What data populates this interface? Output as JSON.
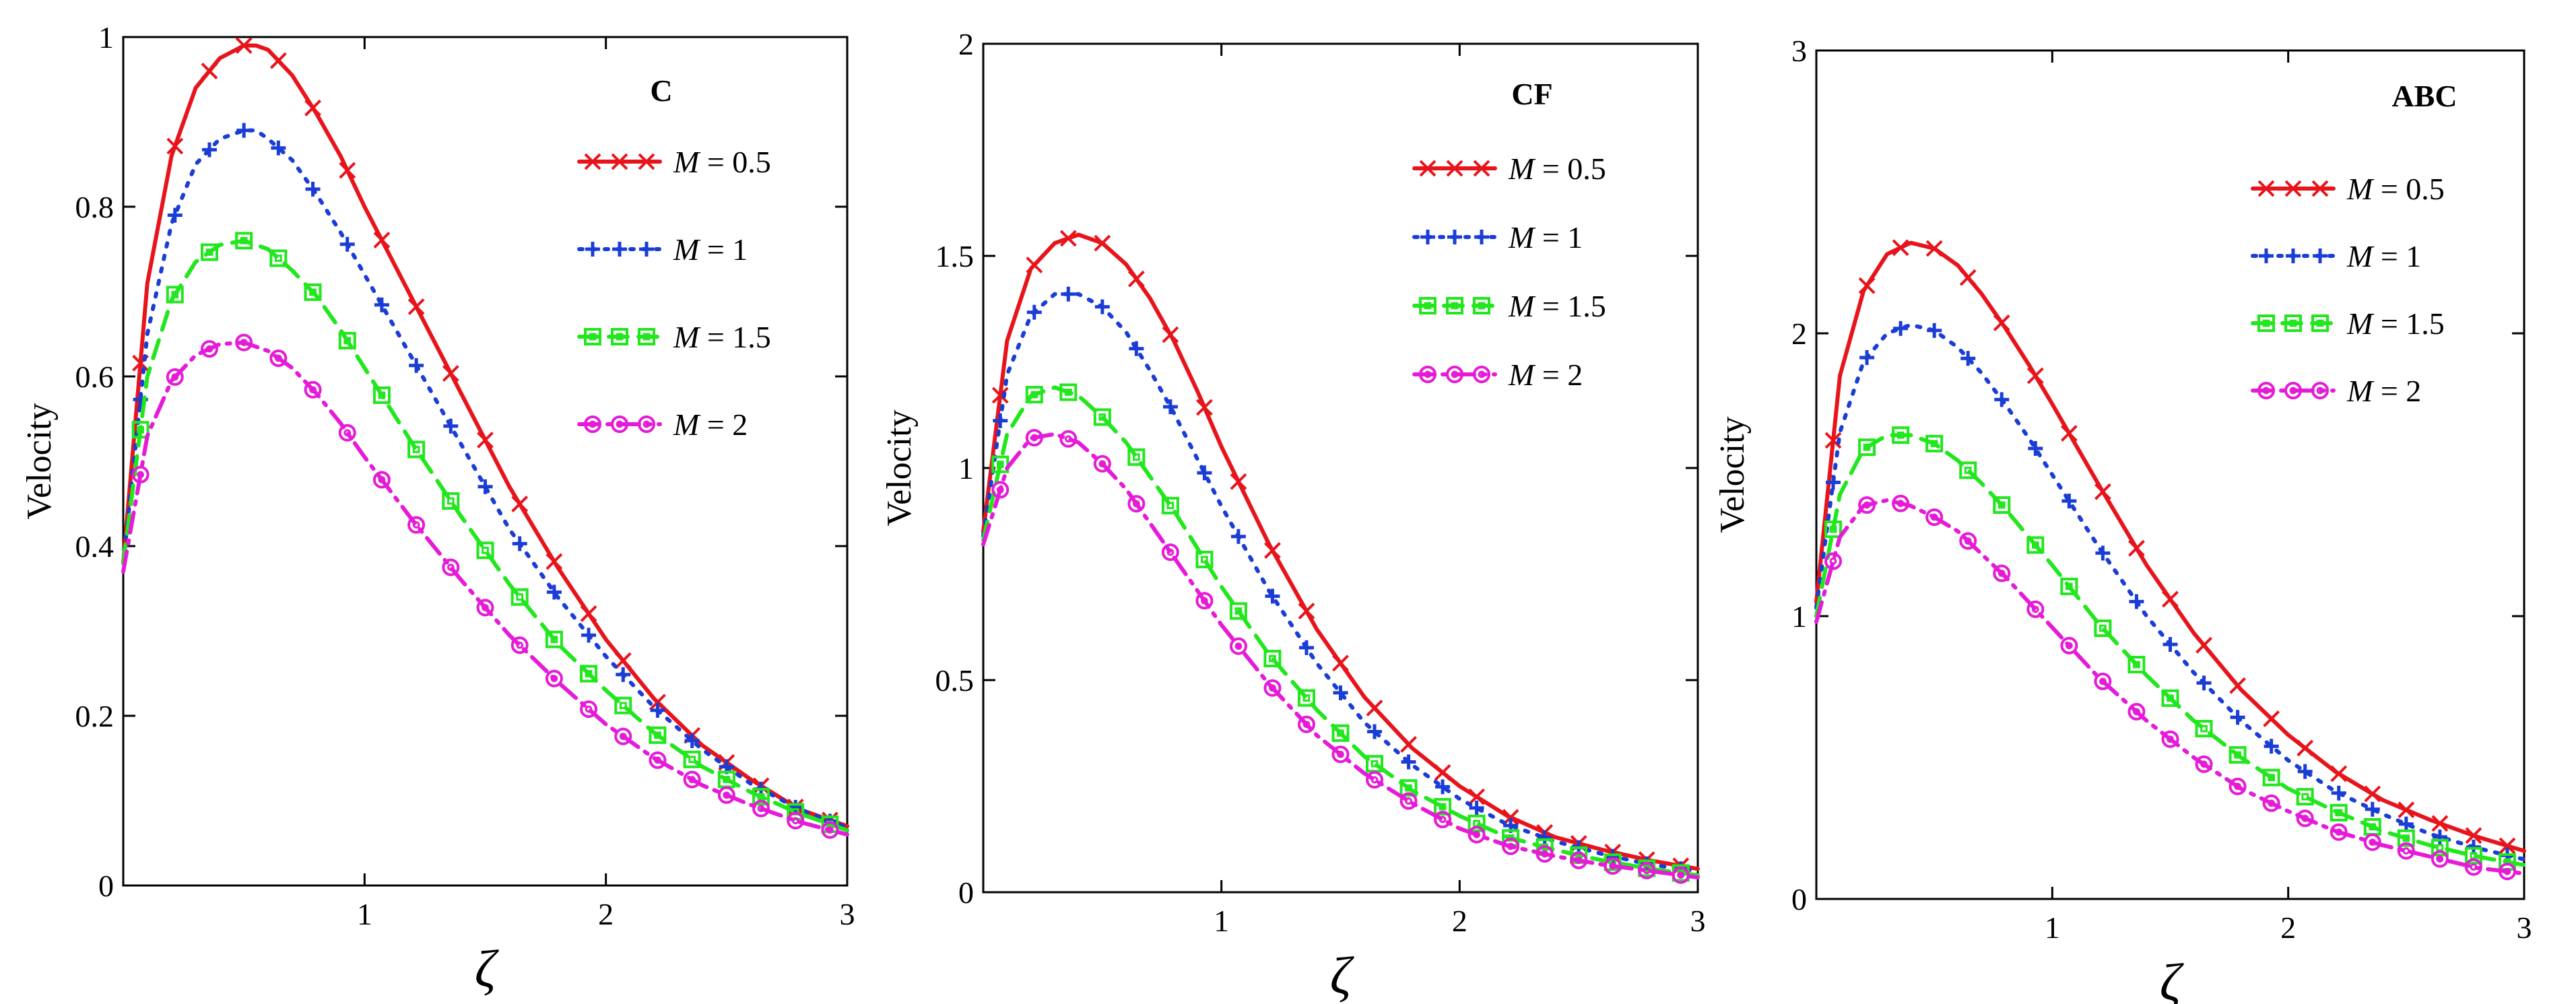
{
  "chart_data": [
    {
      "type": "line",
      "title": "C",
      "xlabel": "ζ",
      "ylabel": "Velocity",
      "xlim": [
        0,
        3
      ],
      "ylim": [
        0,
        1
      ],
      "xticks": [
        1,
        2,
        3
      ],
      "yticks": [
        0,
        0.2,
        0.4,
        0.6,
        0.8,
        1
      ],
      "ytick_labels": [
        "0",
        "0.2",
        "0.4",
        "0.6",
        "0.8",
        "1"
      ],
      "xtick_labels": [
        "1",
        "2",
        "3"
      ],
      "legend_position": "top-right",
      "series": [
        {
          "name": "M = 0.5",
          "legend_label": "= 0.5",
          "style": "solid",
          "marker": "x",
          "color": "#e8141b",
          "x": [
            0,
            0.1,
            0.2,
            0.3,
            0.4,
            0.5,
            0.55,
            0.6,
            0.7,
            0.8,
            0.9,
            1.0,
            1.2,
            1.4,
            1.6,
            1.8,
            2.0,
            2.2,
            2.4,
            2.6,
            2.8,
            3.0
          ],
          "y": [
            0.38,
            0.71,
            0.86,
            0.94,
            0.975,
            0.99,
            0.99,
            0.985,
            0.955,
            0.91,
            0.86,
            0.8,
            0.69,
            0.58,
            0.47,
            0.375,
            0.29,
            0.22,
            0.165,
            0.125,
            0.09,
            0.07
          ]
        },
        {
          "name": "M = 1",
          "legend_label": "= 1",
          "style": "dotted",
          "marker": "+",
          "color": "#1a3dd6",
          "x": [
            0,
            0.1,
            0.2,
            0.3,
            0.4,
            0.5,
            0.55,
            0.6,
            0.7,
            0.8,
            0.9,
            1.0,
            1.2,
            1.4,
            1.6,
            1.8,
            2.0,
            2.2,
            2.4,
            2.6,
            2.8,
            3.0
          ],
          "y": [
            0.38,
            0.65,
            0.78,
            0.85,
            0.88,
            0.89,
            0.89,
            0.88,
            0.855,
            0.815,
            0.77,
            0.72,
            0.62,
            0.52,
            0.42,
            0.34,
            0.27,
            0.21,
            0.16,
            0.12,
            0.09,
            0.068
          ]
        },
        {
          "name": "M = 1.5",
          "legend_label": "= 1.5",
          "style": "dashed",
          "marker": "box",
          "color": "#22e61e",
          "x": [
            0,
            0.1,
            0.2,
            0.3,
            0.4,
            0.5,
            0.6,
            0.7,
            0.8,
            0.9,
            1.0,
            1.2,
            1.4,
            1.6,
            1.8,
            2.0,
            2.2,
            2.4,
            2.6,
            2.8,
            3.0
          ],
          "y": [
            0.38,
            0.6,
            0.69,
            0.735,
            0.755,
            0.76,
            0.75,
            0.725,
            0.695,
            0.655,
            0.61,
            0.52,
            0.435,
            0.355,
            0.285,
            0.23,
            0.18,
            0.14,
            0.11,
            0.085,
            0.065
          ]
        },
        {
          "name": "M = 2",
          "legend_label": "= 2",
          "style": "dashdot",
          "marker": "circle",
          "color": "#e51bd8",
          "x": [
            0,
            0.1,
            0.2,
            0.3,
            0.4,
            0.5,
            0.6,
            0.7,
            0.8,
            0.9,
            1.0,
            1.2,
            1.4,
            1.6,
            1.8,
            2.0,
            2.2,
            2.4,
            2.6,
            2.8,
            3.0
          ],
          "y": [
            0.37,
            0.53,
            0.595,
            0.625,
            0.638,
            0.64,
            0.63,
            0.61,
            0.58,
            0.545,
            0.505,
            0.43,
            0.36,
            0.295,
            0.24,
            0.19,
            0.15,
            0.118,
            0.095,
            0.075,
            0.06
          ]
        }
      ]
    },
    {
      "type": "line",
      "title": "CF",
      "xlabel": "ζ",
      "ylabel": "Velocity",
      "xlim": [
        0,
        3
      ],
      "ylim": [
        0,
        2
      ],
      "xticks": [
        1,
        2,
        3
      ],
      "yticks": [
        0,
        0.5,
        1,
        1.5,
        2
      ],
      "ytick_labels": [
        "0",
        "0.5",
        "1",
        "1.5",
        "2"
      ],
      "xtick_labels": [
        "1",
        "2",
        "3"
      ],
      "legend_position": "top-right",
      "series": [
        {
          "name": "M = 0.5",
          "legend_label": "= 0.5",
          "style": "solid",
          "marker": "x",
          "color": "#e8141b",
          "x": [
            0,
            0.1,
            0.2,
            0.3,
            0.4,
            0.5,
            0.6,
            0.7,
            0.8,
            0.9,
            1.0,
            1.2,
            1.4,
            1.6,
            1.8,
            2.0,
            2.2,
            2.4,
            2.6,
            2.8,
            3.0
          ],
          "y": [
            0.85,
            1.3,
            1.47,
            1.53,
            1.55,
            1.53,
            1.48,
            1.4,
            1.3,
            1.18,
            1.05,
            0.82,
            0.62,
            0.46,
            0.34,
            0.25,
            0.18,
            0.13,
            0.1,
            0.075,
            0.055
          ]
        },
        {
          "name": "M = 1",
          "legend_label": "= 1",
          "style": "dotted",
          "marker": "+",
          "color": "#1a3dd6",
          "x": [
            0,
            0.1,
            0.2,
            0.3,
            0.4,
            0.5,
            0.6,
            0.7,
            0.8,
            0.9,
            1.0,
            1.2,
            1.4,
            1.6,
            1.8,
            2.0,
            2.2,
            2.4,
            2.6,
            2.8,
            3.0
          ],
          "y": [
            0.84,
            1.22,
            1.36,
            1.41,
            1.41,
            1.38,
            1.32,
            1.23,
            1.13,
            1.02,
            0.91,
            0.71,
            0.54,
            0.4,
            0.3,
            0.22,
            0.16,
            0.12,
            0.09,
            0.065,
            0.05
          ]
        },
        {
          "name": "M = 1.5",
          "legend_label": "= 1.5",
          "style": "dashed",
          "marker": "box",
          "color": "#22e61e",
          "x": [
            0,
            0.1,
            0.2,
            0.3,
            0.4,
            0.5,
            0.6,
            0.7,
            0.8,
            0.9,
            1.0,
            1.2,
            1.4,
            1.6,
            1.8,
            2.0,
            2.2,
            2.4,
            2.6,
            2.8,
            3.0
          ],
          "y": [
            0.83,
            1.08,
            1.17,
            1.19,
            1.17,
            1.12,
            1.06,
            0.98,
            0.9,
            0.81,
            0.72,
            0.56,
            0.43,
            0.32,
            0.24,
            0.18,
            0.13,
            0.1,
            0.075,
            0.055,
            0.04
          ]
        },
        {
          "name": "M = 2",
          "legend_label": "= 2",
          "style": "dashdot",
          "marker": "circle",
          "color": "#e51bd8",
          "x": [
            0,
            0.1,
            0.2,
            0.3,
            0.4,
            0.5,
            0.6,
            0.7,
            0.8,
            0.9,
            1.0,
            1.2,
            1.4,
            1.6,
            1.8,
            2.0,
            2.2,
            2.4,
            2.6,
            2.8,
            3.0
          ],
          "y": [
            0.82,
            1.0,
            1.07,
            1.08,
            1.06,
            1.01,
            0.95,
            0.87,
            0.79,
            0.71,
            0.63,
            0.49,
            0.37,
            0.28,
            0.21,
            0.15,
            0.11,
            0.085,
            0.065,
            0.05,
            0.035
          ]
        }
      ]
    },
    {
      "type": "line",
      "title": "ABC",
      "xlabel": "ζ",
      "ylabel": "Velocity",
      "xlim": [
        0,
        3
      ],
      "ylim": [
        0,
        3
      ],
      "xticks": [
        1,
        2,
        3
      ],
      "yticks": [
        0,
        1,
        2,
        3
      ],
      "ytick_labels": [
        "0",
        "1",
        "2",
        "3"
      ],
      "xtick_labels": [
        "1",
        "2",
        "3"
      ],
      "legend_position": "top-right",
      "series": [
        {
          "name": "M = 0.5",
          "legend_label": "= 0.5",
          "style": "solid",
          "marker": "x",
          "color": "#e8141b",
          "x": [
            0,
            0.1,
            0.2,
            0.3,
            0.4,
            0.5,
            0.6,
            0.7,
            0.8,
            0.9,
            1.0,
            1.2,
            1.4,
            1.6,
            1.8,
            2.0,
            2.2,
            2.4,
            2.6,
            2.8,
            3.0
          ],
          "y": [
            1.05,
            1.85,
            2.15,
            2.28,
            2.32,
            2.3,
            2.24,
            2.14,
            2.02,
            1.89,
            1.75,
            1.46,
            1.18,
            0.94,
            0.74,
            0.58,
            0.45,
            0.35,
            0.28,
            0.22,
            0.17
          ]
        },
        {
          "name": "M = 1",
          "legend_label": "= 1",
          "style": "dotted",
          "marker": "+",
          "color": "#1a3dd6",
          "x": [
            0,
            0.1,
            0.2,
            0.3,
            0.4,
            0.5,
            0.6,
            0.7,
            0.8,
            0.9,
            1.0,
            1.2,
            1.4,
            1.6,
            1.8,
            2.0,
            2.2,
            2.4,
            2.6,
            2.8,
            3.0
          ],
          "y": [
            1.03,
            1.65,
            1.9,
            2.0,
            2.03,
            2.01,
            1.95,
            1.86,
            1.75,
            1.63,
            1.5,
            1.24,
            1.0,
            0.8,
            0.63,
            0.49,
            0.38,
            0.3,
            0.23,
            0.18,
            0.14
          ]
        },
        {
          "name": "M = 1.5",
          "legend_label": "= 1.5",
          "style": "dashed",
          "marker": "box",
          "color": "#22e61e",
          "x": [
            0,
            0.1,
            0.2,
            0.3,
            0.4,
            0.5,
            0.6,
            0.7,
            0.8,
            0.9,
            1.0,
            1.2,
            1.4,
            1.6,
            1.8,
            2.0,
            2.2,
            2.4,
            2.6,
            2.8,
            3.0
          ],
          "y": [
            1.0,
            1.43,
            1.59,
            1.64,
            1.64,
            1.61,
            1.55,
            1.47,
            1.38,
            1.28,
            1.18,
            0.97,
            0.79,
            0.63,
            0.5,
            0.39,
            0.31,
            0.24,
            0.19,
            0.15,
            0.12
          ]
        },
        {
          "name": "M = 2",
          "legend_label": "= 2",
          "style": "dashdot",
          "marker": "circle",
          "color": "#e51bd8",
          "x": [
            0,
            0.1,
            0.2,
            0.3,
            0.4,
            0.5,
            0.6,
            0.7,
            0.8,
            0.9,
            1.0,
            1.2,
            1.4,
            1.6,
            1.8,
            2.0,
            2.2,
            2.4,
            2.6,
            2.8,
            3.0
          ],
          "y": [
            0.98,
            1.28,
            1.39,
            1.41,
            1.39,
            1.35,
            1.3,
            1.22,
            1.14,
            1.05,
            0.96,
            0.78,
            0.63,
            0.5,
            0.39,
            0.31,
            0.24,
            0.19,
            0.15,
            0.11,
            0.09
          ]
        }
      ]
    }
  ],
  "legend_symbol": "M"
}
